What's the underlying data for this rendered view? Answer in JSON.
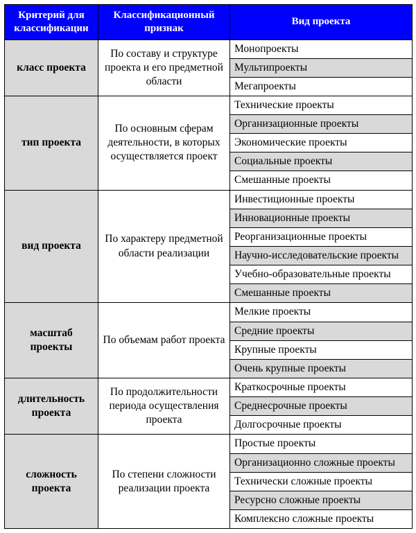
{
  "header_bg": "#0000ff",
  "header_fg": "#ffffff",
  "stripe_bg": "#d9d9d9",
  "columns": [
    "Критерий для классификации",
    "Классификационный признак",
    "Вид проекта"
  ],
  "groups": [
    {
      "criterion": "класс проекта",
      "attribute": "По составу и структуре проекта и его предметной области",
      "types": [
        "Монопроекты",
        "Мультипроекты",
        "Мегапроекты"
      ]
    },
    {
      "criterion": "тип проекта",
      "attribute": "По основным сферам деятельности, в которых осуществляется проект",
      "types": [
        "Технические проекты",
        "Организационные проекты",
        "Экономические проекты",
        "Социальные проекты",
        "Смешанные проекты"
      ]
    },
    {
      "criterion": "вид проекта",
      "attribute": "По характеру предметной области реализации",
      "types": [
        "Инвестиционные проекты",
        "Инновационные проекты",
        "Реорганизационные проекты",
        "Научно-исследовательские проекты",
        "Учебно-образовательные проекты",
        "Смешанные проекты"
      ]
    },
    {
      "criterion": "масштаб проекты",
      "attribute": "По объемам работ проекта",
      "types": [
        "Мелкие проекты",
        "Средние проекты",
        "Крупные проекты",
        "Очень крупные проекты"
      ]
    },
    {
      "criterion": "длительность проекта",
      "attribute": "По продолжительности периода осуществления проекта",
      "types": [
        "Краткосрочные проекты",
        "Среднесрочные проекты",
        "Долгосрочные проекты"
      ]
    },
    {
      "criterion": "сложность проекта",
      "attribute": "По степени сложности реализации проекта",
      "types": [
        "Простые проекты",
        "Организационно сложные проекты",
        "Технически сложные проекты",
        "Ресурсно сложные проекты",
        "Комплексно сложные проекты"
      ]
    }
  ]
}
